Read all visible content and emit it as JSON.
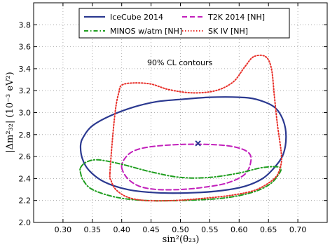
{
  "chart_data": {
    "type": "line",
    "title": "",
    "xlabel": "sin²(θ₂₃)",
    "ylabel": "|Δm²₃₂| (10⁻³ eV²)",
    "xlim": [
      0.25,
      0.75
    ],
    "ylim": [
      2.0,
      4.0
    ],
    "x_ticks": [
      0.3,
      0.35,
      0.4,
      0.45,
      0.5,
      0.55,
      0.6,
      0.65,
      0.7
    ],
    "x_tick_labels": [
      "0.30",
      "0.35",
      "0.40",
      "0.45",
      "0.50",
      "0.55",
      "0.60",
      "0.65",
      "0.70"
    ],
    "y_ticks": [
      2.0,
      2.2,
      2.4,
      2.6,
      2.8,
      3.0,
      3.2,
      3.4,
      3.6,
      3.8
    ],
    "y_tick_labels": [
      "2.0",
      "2.2",
      "2.4",
      "2.6",
      "2.8",
      "3.0",
      "3.2",
      "3.4",
      "3.6",
      "3.8"
    ],
    "grid": true,
    "legend_position": "top",
    "annotation": "90% CL contours",
    "best_fit": {
      "x": 0.53,
      "y": 2.72,
      "color": "#2b3990"
    },
    "series": [
      {
        "name": "IceCube 2014",
        "color": "#2b3990",
        "style": "solid",
        "points": [
          [
            0.33,
            2.7
          ],
          [
            0.335,
            2.78
          ],
          [
            0.35,
            2.88
          ],
          [
            0.38,
            2.97
          ],
          [
            0.42,
            3.05
          ],
          [
            0.46,
            3.1
          ],
          [
            0.5,
            3.12
          ],
          [
            0.55,
            3.14
          ],
          [
            0.6,
            3.14
          ],
          [
            0.63,
            3.12
          ],
          [
            0.66,
            3.05
          ],
          [
            0.675,
            2.93
          ],
          [
            0.68,
            2.78
          ],
          [
            0.675,
            2.62
          ],
          [
            0.66,
            2.5
          ],
          [
            0.64,
            2.4
          ],
          [
            0.61,
            2.33
          ],
          [
            0.57,
            2.29
          ],
          [
            0.52,
            2.27
          ],
          [
            0.46,
            2.27
          ],
          [
            0.41,
            2.3
          ],
          [
            0.37,
            2.37
          ],
          [
            0.345,
            2.47
          ],
          [
            0.333,
            2.58
          ],
          [
            0.33,
            2.7
          ]
        ]
      },
      {
        "name": "T2K 2014 [NH]",
        "color": "#c21fbb",
        "style": "dashed",
        "points": [
          [
            0.4,
            2.5
          ],
          [
            0.405,
            2.58
          ],
          [
            0.42,
            2.65
          ],
          [
            0.45,
            2.69
          ],
          [
            0.5,
            2.71
          ],
          [
            0.55,
            2.71
          ],
          [
            0.59,
            2.69
          ],
          [
            0.615,
            2.64
          ],
          [
            0.62,
            2.56
          ],
          [
            0.61,
            2.44
          ],
          [
            0.58,
            2.36
          ],
          [
            0.54,
            2.32
          ],
          [
            0.5,
            2.3
          ],
          [
            0.46,
            2.3
          ],
          [
            0.43,
            2.33
          ],
          [
            0.41,
            2.4
          ],
          [
            0.4,
            2.5
          ]
        ]
      },
      {
        "name": "MINOS w/atm [NH]",
        "color": "#1f9e1f",
        "style": "dashdot",
        "points": [
          [
            0.33,
            2.5
          ],
          [
            0.34,
            2.55
          ],
          [
            0.36,
            2.57
          ],
          [
            0.4,
            2.53
          ],
          [
            0.45,
            2.46
          ],
          [
            0.5,
            2.41
          ],
          [
            0.55,
            2.41
          ],
          [
            0.6,
            2.45
          ],
          [
            0.64,
            2.5
          ],
          [
            0.67,
            2.5
          ],
          [
            0.665,
            2.42
          ],
          [
            0.65,
            2.34
          ],
          [
            0.62,
            2.27
          ],
          [
            0.57,
            2.22
          ],
          [
            0.5,
            2.2
          ],
          [
            0.44,
            2.2
          ],
          [
            0.39,
            2.23
          ],
          [
            0.35,
            2.3
          ],
          [
            0.335,
            2.38
          ],
          [
            0.33,
            2.45
          ],
          [
            0.33,
            2.5
          ]
        ]
      },
      {
        "name": "SK IV [NH]",
        "color": "#e8302a",
        "style": "dotted",
        "points": [
          [
            0.38,
            2.45
          ],
          [
            0.385,
            2.8
          ],
          [
            0.39,
            3.05
          ],
          [
            0.395,
            3.18
          ],
          [
            0.4,
            3.25
          ],
          [
            0.42,
            3.27
          ],
          [
            0.45,
            3.26
          ],
          [
            0.48,
            3.21
          ],
          [
            0.52,
            3.18
          ],
          [
            0.56,
            3.2
          ],
          [
            0.59,
            3.28
          ],
          [
            0.61,
            3.42
          ],
          [
            0.625,
            3.51
          ],
          [
            0.645,
            3.51
          ],
          [
            0.655,
            3.4
          ],
          [
            0.66,
            3.15
          ],
          [
            0.665,
            2.9
          ],
          [
            0.672,
            2.62
          ],
          [
            0.67,
            2.5
          ],
          [
            0.66,
            2.4
          ],
          [
            0.63,
            2.3
          ],
          [
            0.59,
            2.25
          ],
          [
            0.54,
            2.22
          ],
          [
            0.49,
            2.2
          ],
          [
            0.44,
            2.2
          ],
          [
            0.41,
            2.23
          ],
          [
            0.39,
            2.3
          ],
          [
            0.382,
            2.38
          ],
          [
            0.38,
            2.45
          ]
        ]
      }
    ]
  }
}
